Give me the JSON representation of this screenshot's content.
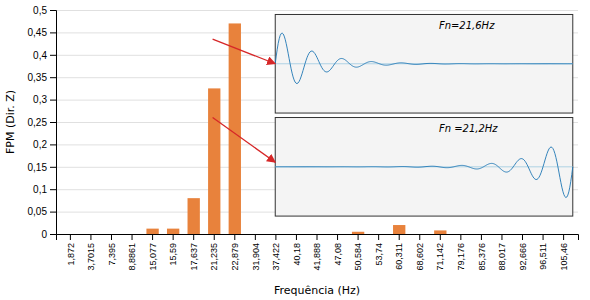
{
  "chart_data": {
    "type": "bar",
    "categories": [
      "1,872",
      "3,7015",
      "7,395",
      "8,8861",
      "15,077",
      "15,59",
      "17,637",
      "21,235",
      "22,879",
      "31,904",
      "37,422",
      "40,18",
      "41,888",
      "47,08",
      "50,584",
      "53,74",
      "60,311",
      "68,602",
      "71,142",
      "79,176",
      "85,376",
      "88,017",
      "92,666",
      "96,511",
      "105,46"
    ],
    "values": [
      0.0,
      0.0,
      0.0,
      0.0,
      0.012,
      0.012,
      0.08,
      0.325,
      0.47,
      0.0,
      0.0,
      0.0,
      0.0,
      0.0,
      0.005,
      0.0,
      0.02,
      0.0,
      0.008,
      0.0,
      0.0,
      0.0,
      0.0,
      0.0,
      0.0
    ],
    "color": "#E8823C",
    "ylim": [
      0,
      0.5
    ],
    "yticks": [
      0,
      {
        "value": 0.05,
        "label": "0,05"
      },
      {
        "value": 0.1,
        "label": "0,1"
      },
      {
        "value": 0.15,
        "label": "0,15"
      },
      {
        "value": 0.2,
        "label": "0,2"
      },
      {
        "value": 0.25,
        "label": "0,25"
      },
      {
        "value": 0.3,
        "label": "0,3"
      },
      {
        "value": 0.35,
        "label": "0,35"
      },
      {
        "value": 0.4,
        "label": "0,4"
      },
      {
        "value": 0.45,
        "label": "0,45"
      },
      {
        "value": 0.5,
        "label": "0,5"
      }
    ],
    "xlabel": "Frequência (Hz)",
    "ylabel": "FPM (Dir. Z)",
    "grid": true,
    "annotations": [
      {
        "text": "Fn=21,6Hz"
      },
      {
        "text": "Fn =21,2Hz"
      }
    ]
  }
}
